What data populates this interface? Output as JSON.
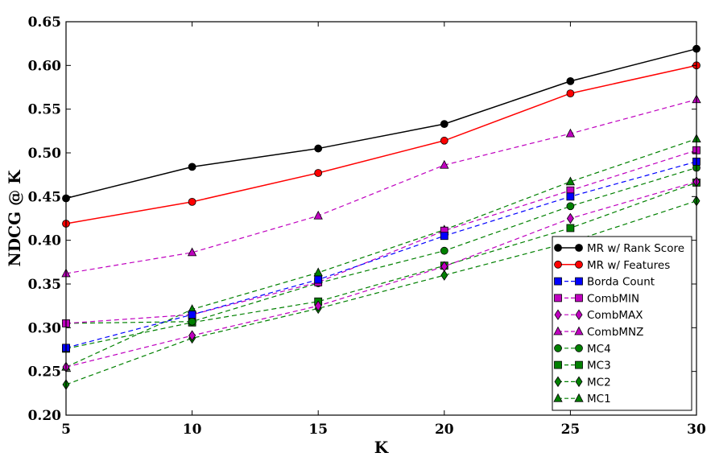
{
  "chart_data": {
    "type": "line",
    "title": "",
    "xlabel": "K",
    "ylabel": "NDCG @ K",
    "xlim": [
      5,
      30
    ],
    "ylim": [
      0.2,
      0.65
    ],
    "xticks": [
      5,
      10,
      15,
      20,
      25,
      30
    ],
    "xtick_labels": [
      "5",
      "10",
      "15",
      "20",
      "25",
      "30"
    ],
    "yticks": [
      0.2,
      0.25,
      0.3,
      0.35,
      0.4,
      0.45,
      0.5,
      0.55,
      0.6,
      0.65
    ],
    "ytick_labels": [
      "0.20",
      "0.25",
      "0.30",
      "0.35",
      "0.40",
      "0.45",
      "0.50",
      "0.55",
      "0.60",
      "0.65"
    ],
    "grid": false,
    "legend_position": "lower-right",
    "x": [
      5,
      10,
      15,
      20,
      25,
      30
    ],
    "series": [
      {
        "name": "MR w/ Rank Score",
        "color": "#000000",
        "dash": "solid",
        "marker": "circle",
        "values": [
          0.448,
          0.484,
          0.505,
          0.533,
          0.582,
          0.619
        ]
      },
      {
        "name": "MR w/ Features",
        "color": "#ff0000",
        "dash": "solid",
        "marker": "circle",
        "values": [
          0.419,
          0.444,
          0.477,
          0.514,
          0.568,
          0.6
        ]
      },
      {
        "name": "Borda Count",
        "color": "#0000ff",
        "dash": "dashed",
        "marker": "square",
        "values": [
          0.277,
          0.315,
          0.355,
          0.405,
          0.45,
          0.49
        ]
      },
      {
        "name": "CombMIN",
        "color": "#bf00bf",
        "dash": "dashed",
        "marker": "square",
        "values": [
          0.305,
          0.315,
          0.352,
          0.411,
          0.457,
          0.503
        ]
      },
      {
        "name": "CombMAX",
        "color": "#bf00bf",
        "dash": "dashed",
        "marker": "diamond",
        "values": [
          0.255,
          0.291,
          0.325,
          0.37,
          0.425,
          0.467
        ]
      },
      {
        "name": "CombMNZ",
        "color": "#bf00bf",
        "dash": "dashed",
        "marker": "triangle",
        "values": [
          0.362,
          0.386,
          0.428,
          0.486,
          0.522,
          0.561
        ]
      },
      {
        "name": "MC4",
        "color": "#008000",
        "dash": "dashed",
        "marker": "circle",
        "values": [
          0.305,
          0.307,
          0.351,
          0.388,
          0.439,
          0.483
        ]
      },
      {
        "name": "MC3",
        "color": "#008000",
        "dash": "dashed",
        "marker": "square",
        "values": [
          0.276,
          0.306,
          0.33,
          0.371,
          0.414,
          0.466
        ]
      },
      {
        "name": "MC2",
        "color": "#008000",
        "dash": "dashed",
        "marker": "diamond",
        "values": [
          0.235,
          0.288,
          0.322,
          0.36,
          0.398,
          0.445
        ]
      },
      {
        "name": "MC1",
        "color": "#008000",
        "dash": "dashed",
        "marker": "triangle",
        "values": [
          0.255,
          0.321,
          0.363,
          0.412,
          0.467,
          0.516
        ]
      }
    ]
  }
}
